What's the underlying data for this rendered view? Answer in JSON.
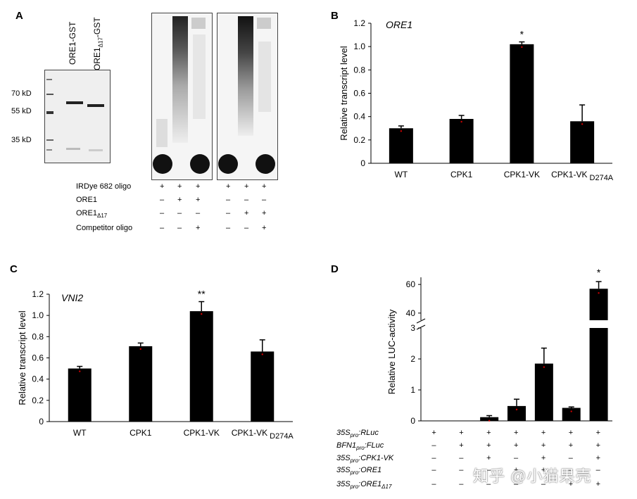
{
  "panel_a": {
    "letter": "A",
    "lanes": [
      "ORE1-GST",
      "ORE1",
      "Δ17",
      "-GST"
    ],
    "markers": [
      "70 kD",
      "55 kD",
      "35 kD"
    ],
    "row_labels": [
      "IRDye 682 oligo",
      "ORE1",
      "ORE1",
      "Δ17",
      "Competitor oligo"
    ],
    "signs": {
      "left": [
        [
          "+",
          "+",
          "+"
        ],
        [
          "–",
          "+",
          "+"
        ],
        [
          "–",
          "–",
          "–"
        ],
        [
          "–",
          "–",
          "+"
        ]
      ],
      "right": [
        [
          "+",
          "+",
          "+"
        ],
        [
          "–",
          "–",
          "–"
        ],
        [
          "–",
          "+",
          "+"
        ],
        [
          "–",
          "–",
          "+"
        ]
      ]
    }
  },
  "panel_b": {
    "letter": "B"
  },
  "panel_c": {
    "letter": "C"
  },
  "panel_d": {
    "letter": "D",
    "rows": [
      {
        "main": "35S",
        "sub": "pro",
        "rest": ":RLuc",
        "extra_sub": ""
      },
      {
        "main": "BFN1",
        "sub": "pro",
        "rest": ":FLuc",
        "extra_sub": ""
      },
      {
        "main": "35S",
        "sub": "pro",
        "rest": ":CPK1-VK",
        "extra_sub": ""
      },
      {
        "main": "35S",
        "sub": "pro",
        "rest": ":ORE1",
        "extra_sub": ""
      },
      {
        "main": "35S",
        "sub": "pro",
        "rest": ":ORE1",
        "extra_sub": "Δ17"
      }
    ],
    "signs": [
      [
        "+",
        "+",
        "+",
        "+",
        "+",
        "+",
        "+"
      ],
      [
        "–",
        "+",
        "+",
        "+",
        "+",
        "+",
        "+"
      ],
      [
        "–",
        "–",
        "+",
        "–",
        "+",
        "–",
        "+"
      ],
      [
        "–",
        "–",
        "–",
        "+",
        "+",
        "–",
        "–"
      ],
      [
        "–",
        "–",
        "–",
        "–",
        "–",
        "+",
        "+"
      ]
    ]
  },
  "watermark": "知乎 @小猫果壳",
  "chart_data": [
    {
      "id": "B",
      "type": "bar",
      "title": "ORE1",
      "ylabel": "Relative transcript level",
      "categories": [
        "WT",
        "CPK1",
        "CPK1-VK",
        "CPK1-VK"
      ],
      "category_subscripts": [
        "",
        "",
        "",
        "D274A"
      ],
      "values": [
        0.3,
        0.38,
        1.02,
        0.36
      ],
      "errors": [
        0.02,
        0.03,
        0.02,
        0.14
      ],
      "ylim": [
        0,
        1.2
      ],
      "yticks": [
        "0",
        "0.2",
        "0.4",
        "0.6",
        "0.8",
        "1.0",
        "1.2"
      ],
      "annotations": [
        "",
        "",
        "*",
        ""
      ]
    },
    {
      "id": "C",
      "type": "bar",
      "title": "VNI2",
      "ylabel": "Relative transcript level",
      "categories": [
        "WT",
        "CPK1",
        "CPK1-VK",
        "CPK1-VK"
      ],
      "category_subscripts": [
        "",
        "",
        "",
        "D274A"
      ],
      "values": [
        0.5,
        0.71,
        1.04,
        0.66
      ],
      "errors": [
        0.02,
        0.03,
        0.09,
        0.11
      ],
      "ylim": [
        0,
        1.2
      ],
      "yticks": [
        "0",
        "0.2",
        "0.4",
        "0.6",
        "0.8",
        "1.0",
        "1.2"
      ],
      "annotations": [
        "",
        "",
        "**",
        ""
      ]
    },
    {
      "id": "D",
      "type": "bar",
      "ylabel": "Relative LUC-activity",
      "values": [
        0.0,
        0.0,
        0.12,
        0.48,
        1.85,
        0.42,
        57.0
      ],
      "errors": [
        0.0,
        0.0,
        0.05,
        0.22,
        0.5,
        0.03,
        5.0
      ],
      "ylim_lower": [
        0,
        3
      ],
      "ylim_upper": [
        35,
        65
      ],
      "yticks_lower": [
        "0",
        "1",
        "2",
        "3"
      ],
      "yticks_upper": [
        "40",
        "60"
      ],
      "annotations": [
        "",
        "",
        "",
        "",
        "",
        "",
        "*"
      ]
    }
  ]
}
